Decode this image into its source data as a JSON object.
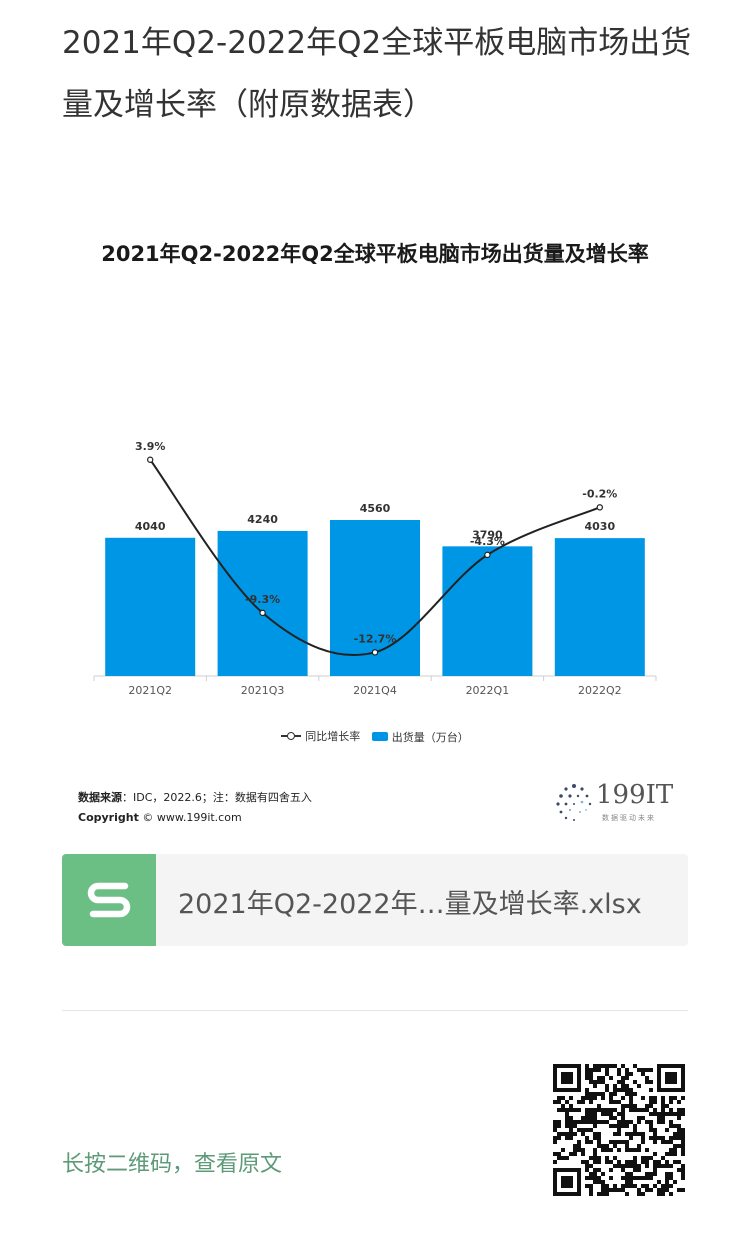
{
  "page": {
    "title": "2021年Q2-2022年Q2全球平板电脑市场出货量及增长率（附原数据表）"
  },
  "chart_data": {
    "type": "bar",
    "title": "2021年Q2-2022年Q2全球平板电脑市场出货量及增长率",
    "categories": [
      "2021Q2",
      "2021Q3",
      "2021Q4",
      "2022Q1",
      "2022Q2"
    ],
    "series": [
      {
        "name": "出货量（万台）",
        "type": "bar",
        "values": [
          4040,
          4240,
          4560,
          3790,
          4030
        ],
        "labels": [
          "4040",
          "4240",
          "4560",
          "3790",
          "4030"
        ],
        "color": "#0096e6"
      },
      {
        "name": "同比增长率",
        "type": "line",
        "values": [
          3.9,
          -9.3,
          -12.7,
          -4.3,
          -0.2
        ],
        "labels": [
          "3.9%",
          "-9.3%",
          "-12.7%",
          "-4.3%",
          "-0.2%"
        ],
        "color": "#222222"
      }
    ],
    "legend_position": "bottom",
    "grid": false
  },
  "source": {
    "label": "数据来源",
    "text": "：IDC，2022.6；注：数据有四舍五入",
    "copyright_label": "Copyright",
    "copyright_text": "© www.199it.com"
  },
  "brand": {
    "name": "199IT",
    "slogan": "数据驱动未来"
  },
  "file_card": {
    "icon": "spreadsheet-s-icon",
    "icon_color": "#6cbf84",
    "name": "2021年Q2-2022年…量及增长率.xlsx"
  },
  "footer": {
    "text": "长按二维码，查看原文"
  }
}
